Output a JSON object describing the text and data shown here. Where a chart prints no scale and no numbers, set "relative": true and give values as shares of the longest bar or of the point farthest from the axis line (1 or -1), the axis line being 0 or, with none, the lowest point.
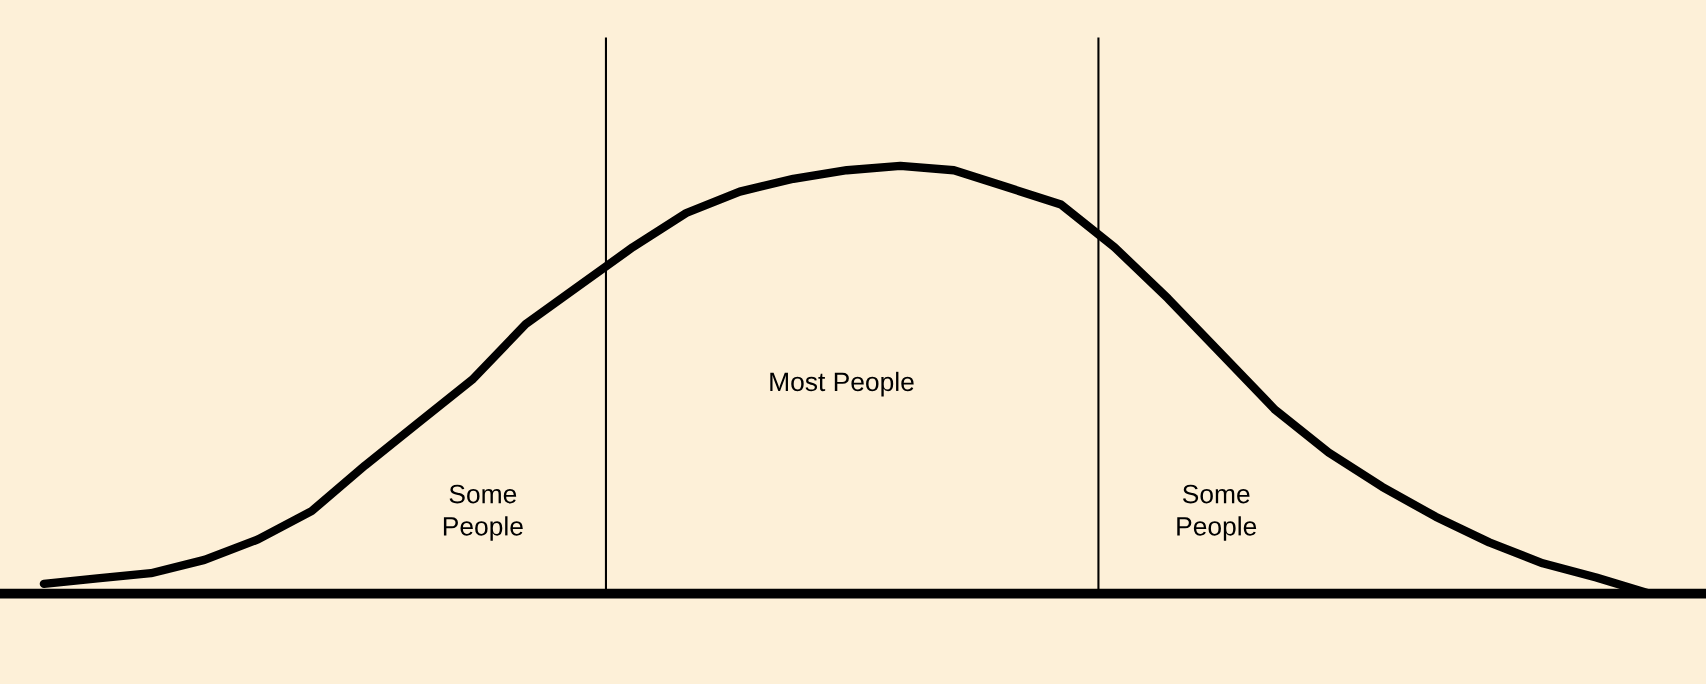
{
  "chart_data": {
    "type": "line",
    "relative": true,
    "categories": [
      null,
      null,
      null,
      null,
      null,
      null,
      null,
      null,
      null,
      null,
      null,
      null,
      null,
      null,
      null,
      null,
      null,
      null,
      null,
      null,
      null,
      null,
      null,
      null,
      null,
      null,
      null,
      null,
      null,
      null,
      null
    ],
    "series": [
      {
        "color": "#000000",
        "values": [
          0.023,
          0.036,
          0.048,
          0.079,
          0.127,
          0.193,
          0.3,
          0.4,
          0.5,
          0.63,
          0.72,
          0.81,
          0.89,
          0.94,
          0.97,
          0.99,
          1.0,
          0.99,
          0.95,
          0.91,
          0.81,
          0.69,
          0.56,
          0.43,
          0.33,
          0.25,
          0.18,
          0.12,
          0.071,
          0.038,
          0
        ]
      }
    ],
    "annotations": [
      "Some\nPeople",
      "Most People",
      "Some\nPeople"
    ],
    "grid": false,
    "legend": false,
    "marker": "none",
    "line_style": "solid"
  }
}
